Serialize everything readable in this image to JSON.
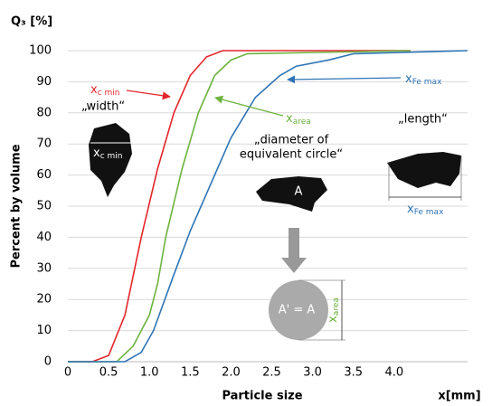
{
  "chart_data": {
    "type": "line",
    "y_axis_top_label": "Q₃ [%]",
    "y_axis_title": "Percent by volume",
    "x_axis_title": "Particle size",
    "x_axis_unit": "x[mm]",
    "xlim": [
      0,
      4.9
    ],
    "ylim": [
      0,
      100
    ],
    "xticks": [
      0,
      0.5,
      {
        "value": 1,
        "label": "1.0"
      },
      1.5,
      {
        "value": 2,
        "label": "2.0"
      },
      2.5,
      {
        "value": 3,
        "label": "3.0"
      },
      3.5,
      {
        "value": 4,
        "label": "4.0"
      }
    ],
    "yticks": [
      0,
      10,
      20,
      30,
      40,
      50,
      60,
      70,
      80,
      90,
      100
    ],
    "grid": true,
    "series": [
      {
        "color": "#e3262b",
        "x": [
          0,
          0.3,
          0.5,
          0.7,
          0.9,
          1.1,
          1.3,
          1.5,
          1.7,
          1.9,
          4.2
        ],
        "values": [
          0,
          0,
          2,
          15,
          40,
          62,
          80,
          92,
          98,
          100,
          100
        ]
      },
      {
        "color": "#6db33f",
        "x": [
          0,
          0.6,
          0.8,
          1.0,
          1.1,
          1.2,
          1.4,
          1.6,
          1.8,
          2.0,
          2.2,
          4.2
        ],
        "values": [
          0,
          0,
          5,
          15,
          25,
          40,
          62,
          80,
          92,
          97,
          99,
          100
        ]
      },
      {
        "color": "#2f74b5",
        "x": [
          0,
          0.7,
          0.9,
          1.05,
          1.3,
          1.5,
          1.8,
          2.0,
          2.3,
          2.6,
          2.8,
          3.2,
          3.5,
          4.9
        ],
        "values": [
          0,
          0,
          3,
          10,
          28,
          42,
          60,
          72,
          85,
          92,
          95,
          97,
          99,
          100
        ]
      }
    ],
    "annotations": {
      "xcmin": {
        "text": "x",
        "sub": "c min"
      },
      "width": "„width“",
      "xcmin_shape": {
        "text": "x",
        "sub": "c min"
      },
      "xarea": {
        "text": "x",
        "sub": "area"
      },
      "diameter": [
        "„diameter of",
        "equivalent circle“"
      ],
      "area_a": "A",
      "area_equal": "A' = A",
      "xarea_circle": {
        "text": "x",
        "sub": "area"
      },
      "xfemax": {
        "text": "x",
        "sub": "Fe max"
      },
      "length": "„length“",
      "xfemax_shape": {
        "text": "x",
        "sub": "Fe max"
      }
    }
  }
}
